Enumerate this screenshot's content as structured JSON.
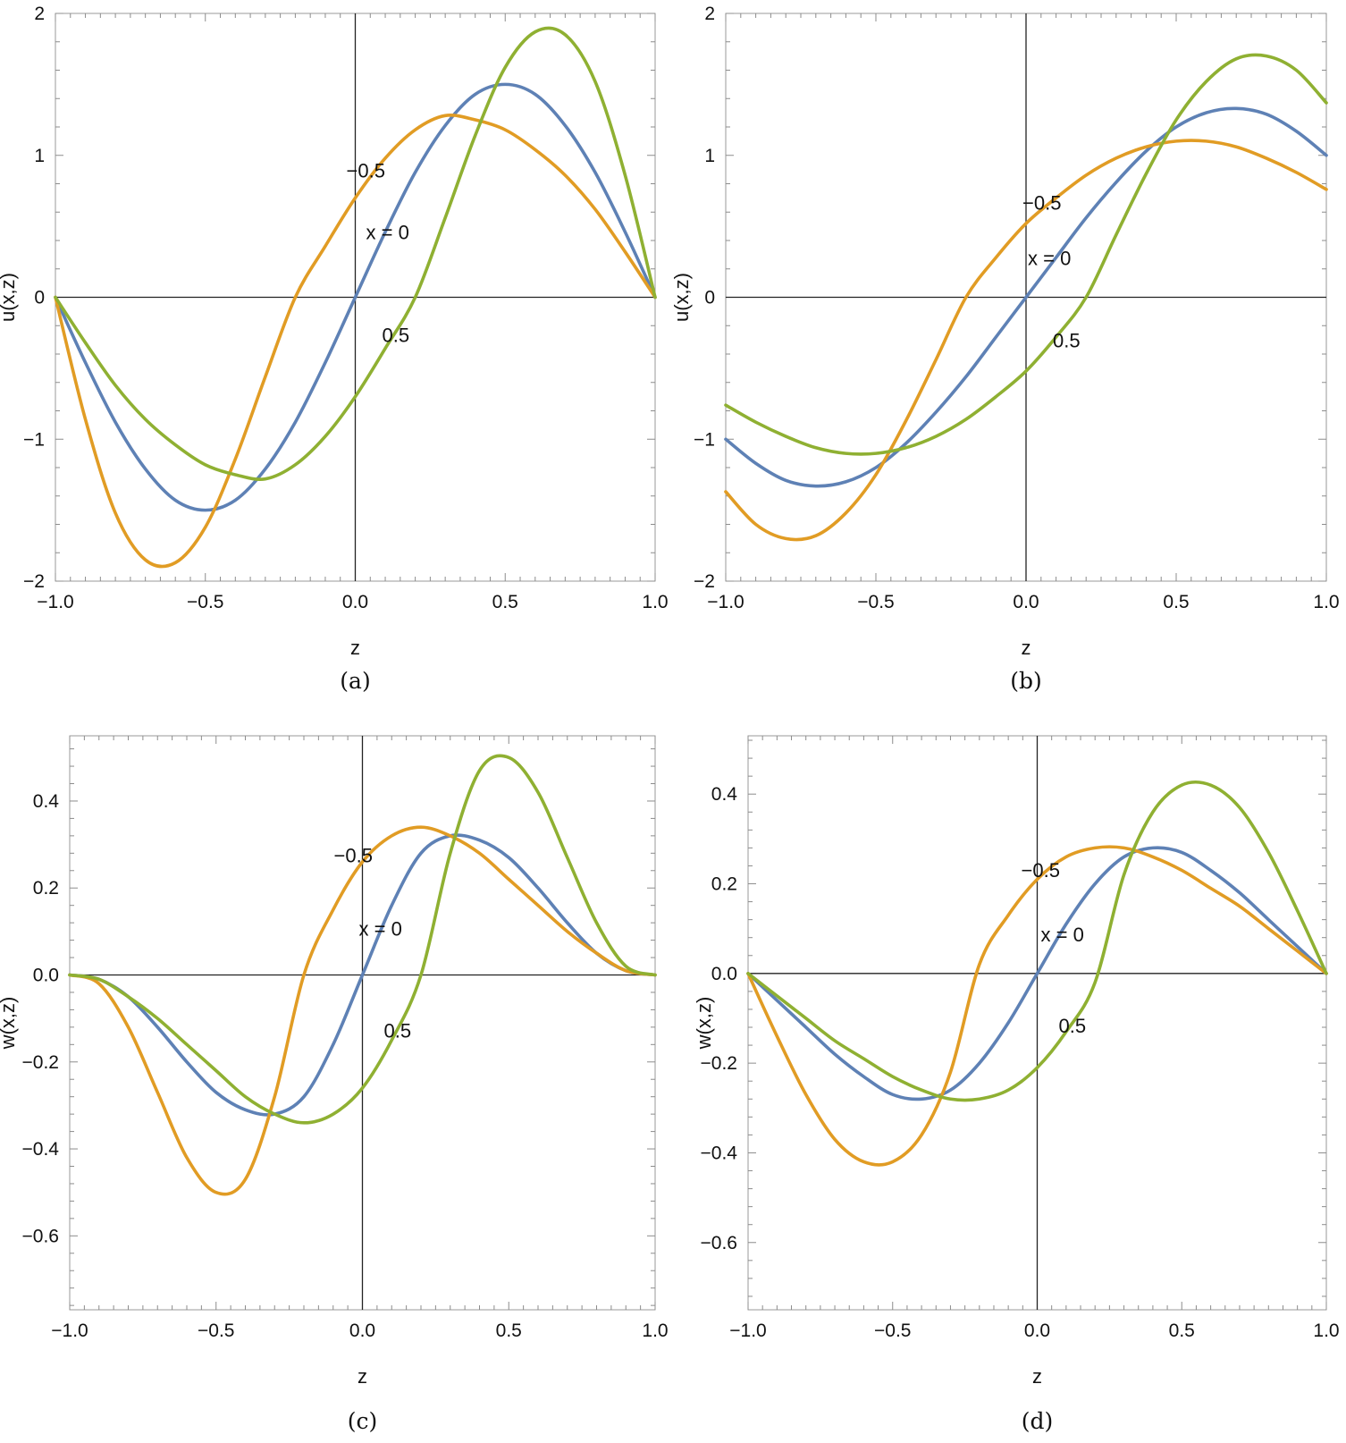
{
  "colors": {
    "x_neg_0_5": "#E19C24",
    "x_0": "#5E81B5",
    "x_pos_0_5": "#8FB032",
    "axis": "#222222",
    "frame": "#9a9a9a"
  },
  "chart_data": [
    {
      "type": "line",
      "caption": "(a)",
      "xlabel": "z",
      "ylabel": "u(x,z)",
      "xlim": [
        -1.0,
        1.0
      ],
      "ylim": [
        -2,
        2
      ],
      "xticks": [
        "-1.0",
        "-0.5",
        "0.0",
        "0.5",
        "1.0"
      ],
      "yticks": [
        "-2",
        "-1",
        "0",
        "1",
        "2"
      ],
      "curve_labels": [
        "-0.5",
        "x = 0",
        "0.5"
      ],
      "series": [
        {
          "color_key": "x_0",
          "x": [
            -1.0,
            -0.9,
            -0.8,
            -0.7,
            -0.6,
            -0.5,
            -0.4,
            -0.3,
            -0.2,
            -0.1,
            0.0,
            0.1,
            0.2,
            0.3,
            0.4,
            0.5,
            0.6,
            0.7,
            0.8,
            0.9,
            1.0
          ],
          "y": [
            0.0,
            -0.46,
            -0.88,
            -1.21,
            -1.43,
            -1.5,
            -1.43,
            -1.21,
            -0.88,
            -0.46,
            0.0,
            0.46,
            0.88,
            1.21,
            1.43,
            1.5,
            1.43,
            1.21,
            0.88,
            0.46,
            0.0
          ]
        },
        {
          "color_key": "x_neg_0_5",
          "x": [
            -1.0,
            -0.9,
            -0.8,
            -0.7,
            -0.6,
            -0.5,
            -0.4,
            -0.3,
            -0.2,
            -0.1,
            0.0,
            0.1,
            0.2,
            0.3,
            0.4,
            0.5,
            0.6,
            0.7,
            0.8,
            0.9,
            1.0
          ],
          "y": [
            0.0,
            -0.86,
            -1.52,
            -1.85,
            -1.87,
            -1.62,
            -1.14,
            -0.56,
            0.0,
            0.36,
            0.7,
            0.98,
            1.18,
            1.28,
            1.25,
            1.18,
            1.04,
            0.86,
            0.62,
            0.32,
            0.0
          ]
        },
        {
          "color_key": "x_pos_0_5",
          "x": [
            -1.0,
            -0.9,
            -0.8,
            -0.7,
            -0.6,
            -0.5,
            -0.4,
            -0.3,
            -0.2,
            -0.1,
            0.0,
            0.1,
            0.2,
            0.3,
            0.4,
            0.5,
            0.6,
            0.7,
            0.8,
            0.9,
            1.0
          ],
          "y": [
            0.0,
            -0.32,
            -0.62,
            -0.86,
            -1.04,
            -1.18,
            -1.25,
            -1.28,
            -1.18,
            -0.98,
            -0.7,
            -0.36,
            0.0,
            0.56,
            1.14,
            1.62,
            1.87,
            1.85,
            1.52,
            0.86,
            0.0
          ]
        }
      ]
    },
    {
      "type": "line",
      "caption": "(b)",
      "xlabel": "z",
      "ylabel": "u(x,z)",
      "xlim": [
        -1.0,
        1.0
      ],
      "ylim": [
        -2,
        2
      ],
      "xticks": [
        "-1.0",
        "-0.5",
        "0.0",
        "0.5",
        "1.0"
      ],
      "yticks": [
        "-2",
        "-1",
        "0",
        "1",
        "2"
      ],
      "curve_labels": [
        "-0.5",
        "x = 0",
        "0.5"
      ],
      "series": [
        {
          "color_key": "x_0",
          "x": [
            -1.0,
            -0.9,
            -0.8,
            -0.7,
            -0.6,
            -0.5,
            -0.4,
            -0.3,
            -0.2,
            -0.1,
            0.0,
            0.1,
            0.2,
            0.3,
            0.4,
            0.5,
            0.6,
            0.7,
            0.8,
            0.9,
            1.0
          ],
          "y": [
            -1.0,
            -1.17,
            -1.29,
            -1.33,
            -1.3,
            -1.2,
            -1.03,
            -0.81,
            -0.56,
            -0.28,
            0.0,
            0.28,
            0.56,
            0.81,
            1.03,
            1.2,
            1.3,
            1.33,
            1.29,
            1.17,
            1.0
          ]
        },
        {
          "color_key": "x_neg_0_5",
          "x": [
            -1.0,
            -0.9,
            -0.8,
            -0.7,
            -0.6,
            -0.5,
            -0.4,
            -0.3,
            -0.2,
            -0.1,
            0.0,
            0.1,
            0.2,
            0.3,
            0.4,
            0.5,
            0.6,
            0.7,
            0.8,
            0.9,
            1.0
          ],
          "y": [
            -1.37,
            -1.6,
            -1.7,
            -1.68,
            -1.52,
            -1.25,
            -0.87,
            -0.44,
            0.0,
            0.28,
            0.52,
            0.7,
            0.86,
            0.98,
            1.06,
            1.1,
            1.1,
            1.06,
            0.98,
            0.88,
            0.76
          ]
        },
        {
          "color_key": "x_pos_0_5",
          "x": [
            -1.0,
            -0.9,
            -0.8,
            -0.7,
            -0.6,
            -0.5,
            -0.4,
            -0.3,
            -0.2,
            -0.1,
            0.0,
            0.1,
            0.2,
            0.3,
            0.4,
            0.5,
            0.6,
            0.7,
            0.8,
            0.9,
            1.0
          ],
          "y": [
            -0.76,
            -0.88,
            -0.98,
            -1.06,
            -1.1,
            -1.1,
            -1.06,
            -0.98,
            -0.86,
            -0.7,
            -0.52,
            -0.28,
            0.0,
            0.44,
            0.87,
            1.25,
            1.52,
            1.68,
            1.7,
            1.6,
            1.37
          ]
        }
      ]
    },
    {
      "type": "line",
      "caption": "(c)",
      "xlabel": "z",
      "ylabel": "w(x,z)",
      "xlim": [
        -1.0,
        1.0
      ],
      "ylim": [
        -0.77,
        0.55
      ],
      "xticks": [
        "-1.0",
        "-0.5",
        "0.0",
        "0.5",
        "1.0"
      ],
      "yticks": [
        "-0.6",
        "-0.4",
        "-0.2",
        "0.0",
        "0.2",
        "0.4"
      ],
      "curve_labels": [
        "-0.5",
        "x = 0",
        "0.5"
      ],
      "series": [
        {
          "color_key": "x_0",
          "x": [
            -1.0,
            -0.9,
            -0.8,
            -0.7,
            -0.6,
            -0.5,
            -0.4,
            -0.3,
            -0.2,
            -0.1,
            0.0,
            0.1,
            0.2,
            0.3,
            0.4,
            0.5,
            0.6,
            0.7,
            0.8,
            0.9,
            1.0
          ],
          "y": [
            0.0,
            -0.01,
            -0.05,
            -0.12,
            -0.2,
            -0.27,
            -0.31,
            -0.32,
            -0.28,
            -0.16,
            0.0,
            0.16,
            0.28,
            0.32,
            0.31,
            0.27,
            0.2,
            0.12,
            0.05,
            0.01,
            0.0
          ]
        },
        {
          "color_key": "x_neg_0_5",
          "x": [
            -1.0,
            -0.9,
            -0.8,
            -0.7,
            -0.6,
            -0.5,
            -0.4,
            -0.3,
            -0.2,
            -0.1,
            0.0,
            0.1,
            0.2,
            0.3,
            0.4,
            0.5,
            0.6,
            0.7,
            0.8,
            0.9,
            1.0
          ],
          "y": [
            0.0,
            -0.02,
            -0.12,
            -0.27,
            -0.42,
            -0.5,
            -0.47,
            -0.28,
            0.0,
            0.15,
            0.26,
            0.32,
            0.34,
            0.32,
            0.28,
            0.22,
            0.16,
            0.1,
            0.05,
            0.01,
            0.0
          ]
        },
        {
          "color_key": "x_pos_0_5",
          "x": [
            -1.0,
            -0.9,
            -0.8,
            -0.7,
            -0.6,
            -0.5,
            -0.4,
            -0.3,
            -0.2,
            -0.1,
            0.0,
            0.1,
            0.2,
            0.3,
            0.4,
            0.5,
            0.6,
            0.7,
            0.8,
            0.9,
            1.0
          ],
          "y": [
            0.0,
            -0.01,
            -0.05,
            -0.1,
            -0.16,
            -0.22,
            -0.28,
            -0.32,
            -0.34,
            -0.32,
            -0.26,
            -0.15,
            0.0,
            0.28,
            0.47,
            0.5,
            0.42,
            0.27,
            0.12,
            0.02,
            0.0
          ]
        }
      ]
    },
    {
      "type": "line",
      "caption": "(d)",
      "xlabel": "z",
      "ylabel": "w(x,z)",
      "xlim": [
        -1.0,
        1.0
      ],
      "ylim": [
        -0.75,
        0.53
      ],
      "xticks": [
        "-1.0",
        "-0.5",
        "0.0",
        "0.5",
        "1.0"
      ],
      "yticks": [
        "-0.6",
        "-0.4",
        "-0.2",
        "0.0",
        "0.2",
        "0.4"
      ],
      "curve_labels": [
        "-0.5",
        "x = 0",
        "0.5"
      ],
      "series": [
        {
          "color_key": "x_0",
          "x": [
            -1.0,
            -0.9,
            -0.8,
            -0.7,
            -0.6,
            -0.5,
            -0.4,
            -0.3,
            -0.2,
            -0.1,
            0.0,
            0.1,
            0.2,
            0.3,
            0.4,
            0.5,
            0.6,
            0.7,
            0.8,
            0.9,
            1.0
          ],
          "y": [
            0.0,
            -0.06,
            -0.12,
            -0.18,
            -0.23,
            -0.27,
            -0.28,
            -0.26,
            -0.2,
            -0.11,
            0.0,
            0.11,
            0.2,
            0.26,
            0.28,
            0.27,
            0.23,
            0.18,
            0.12,
            0.06,
            0.0
          ]
        },
        {
          "color_key": "x_neg_0_5",
          "x": [
            -1.0,
            -0.9,
            -0.8,
            -0.7,
            -0.6,
            -0.5,
            -0.4,
            -0.3,
            -0.2,
            -0.1,
            0.0,
            0.1,
            0.2,
            0.3,
            0.4,
            0.5,
            0.6,
            0.7,
            0.8,
            0.9,
            1.0
          ],
          "y": [
            0.0,
            -0.14,
            -0.27,
            -0.37,
            -0.42,
            -0.42,
            -0.36,
            -0.22,
            0.02,
            0.13,
            0.21,
            0.26,
            0.28,
            0.28,
            0.26,
            0.23,
            0.19,
            0.15,
            0.1,
            0.05,
            0.0
          ]
        },
        {
          "color_key": "x_pos_0_5",
          "x": [
            -1.0,
            -0.9,
            -0.8,
            -0.7,
            -0.6,
            -0.5,
            -0.4,
            -0.3,
            -0.2,
            -0.1,
            0.0,
            0.1,
            0.2,
            0.3,
            0.4,
            0.5,
            0.6,
            0.7,
            0.8,
            0.9,
            1.0
          ],
          "y": [
            0.0,
            -0.05,
            -0.1,
            -0.15,
            -0.19,
            -0.23,
            -0.26,
            -0.28,
            -0.28,
            -0.26,
            -0.21,
            -0.13,
            -0.02,
            0.22,
            0.36,
            0.42,
            0.42,
            0.37,
            0.27,
            0.14,
            0.0
          ]
        }
      ]
    }
  ]
}
